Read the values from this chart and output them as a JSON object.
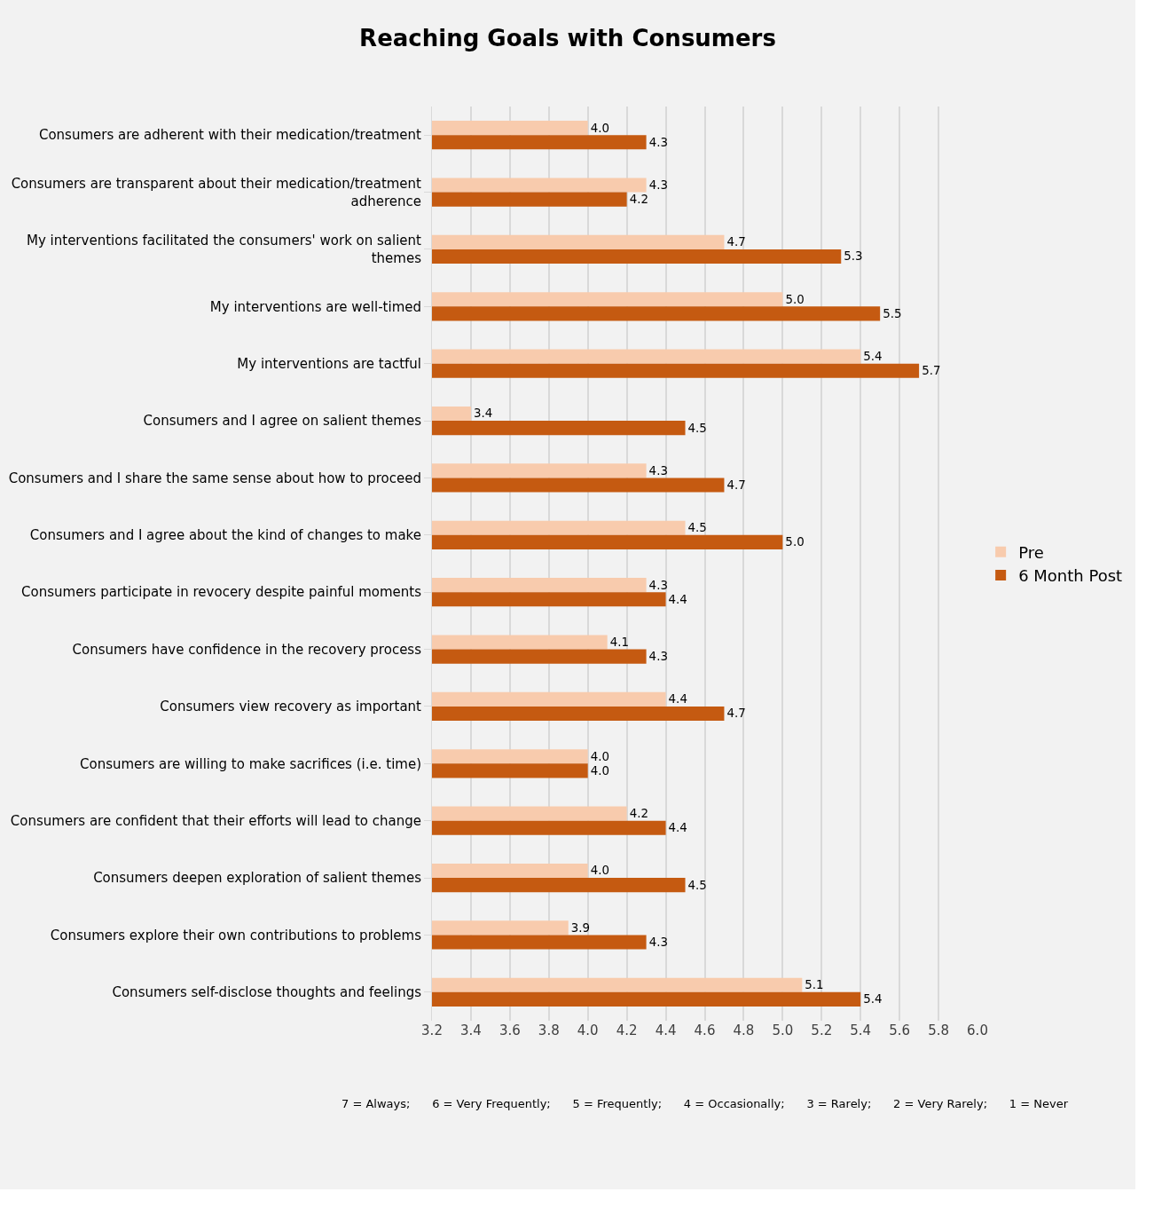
{
  "chart_data": {
    "type": "bar",
    "orientation": "horizontal",
    "title": "Reaching Goals with Consumers",
    "categories": [
      "Consumers are adherent with their medication/treatment",
      "Consumers are transparent about their medication/treatment adherence",
      "My interventions facilitated the consumers' work on salient themes",
      "My interventions are well-timed",
      "My interventions are tactful",
      "Consumers and I agree on salient themes",
      "Consumers and I share the same sense about how to proceed",
      "Consumers and I agree about the kind of changes to make",
      "Consumers participate in revocery despite painful moments",
      "Consumers have confidence in the recovery process",
      "Consumers view recovery as important",
      "Consumers are willing to make sacrifices (i.e. time)",
      "Consumers are confident that their efforts will lead to change",
      "Consumers deepen exploration of salient themes",
      "Consumers explore their own contributions to problems",
      "Consumers self-disclose thoughts and feelings"
    ],
    "series": [
      {
        "name": "Pre",
        "color": "#f8cbad",
        "values": [
          4.0,
          4.3,
          4.7,
          5.0,
          5.4,
          3.4,
          4.3,
          4.5,
          4.3,
          4.1,
          4.4,
          4.0,
          4.2,
          4.0,
          3.9,
          5.1
        ],
        "value_labels": [
          "4.0",
          "4.3",
          "4.7",
          "5.0",
          "5.4",
          "3.4",
          "4.3",
          "4.5",
          "4.3",
          "4.1",
          "4.4",
          "4.0",
          "4.2",
          "4.0",
          "3.9",
          "5.1"
        ]
      },
      {
        "name": "6 Month Post",
        "color": "#c55a11",
        "values": [
          4.3,
          4.2,
          5.3,
          5.5,
          5.7,
          4.5,
          4.7,
          5.0,
          4.4,
          4.3,
          4.7,
          4.0,
          4.4,
          4.5,
          4.3,
          5.4
        ],
        "value_labels": [
          "4.3",
          "4.2",
          "5.3",
          "5.5",
          "5.7",
          "4.5",
          "4.7",
          "5.0",
          "4.4",
          "4.3",
          "4.7",
          "4.0",
          "4.4",
          "4.5",
          "4.3",
          "5.4"
        ]
      }
    ],
    "xlim": [
      3.2,
      6.0
    ],
    "xticks": [
      {
        "value": 3.2,
        "label": "3.2"
      },
      {
        "value": 3.4,
        "label": "3.4"
      },
      {
        "value": 3.6,
        "label": "3.6"
      },
      {
        "value": 3.8,
        "label": "3.8"
      },
      {
        "value": 4.0,
        "label": "4.0"
      },
      {
        "value": 4.2,
        "label": "4.2"
      },
      {
        "value": 4.4,
        "label": "4.4"
      },
      {
        "value": 4.6,
        "label": "4.6"
      },
      {
        "value": 4.8,
        "label": "4.8"
      },
      {
        "value": 5.0,
        "label": "5.0"
      },
      {
        "value": 5.2,
        "label": "5.2"
      },
      {
        "value": 5.4,
        "label": "5.4"
      },
      {
        "value": 5.6,
        "label": "5.6"
      },
      {
        "value": 5.8,
        "label": "5.8"
      },
      {
        "value": 6.0,
        "label": "6.0"
      }
    ],
    "grid": "x",
    "legend": "right",
    "annotations": [
      "7 = Always;      6 = Very Frequently;      5 = Frequently;      4 = Occasionally;      3 = Rarely;      2 = Very Rarely;      1 = Never"
    ]
  }
}
